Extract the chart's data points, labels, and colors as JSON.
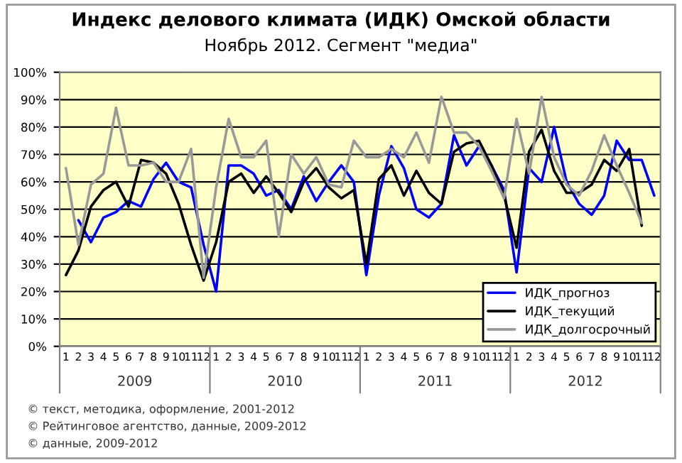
{
  "chart_data": {
    "type": "line",
    "title": "Индекс делового климата (ИДК) Омской области",
    "subtitle": "Ноябрь 2012. Сегмент \"медиа\"",
    "categories": [
      "1",
      "2",
      "3",
      "4",
      "5",
      "6",
      "7",
      "8",
      "9",
      "10",
      "11",
      "12",
      "1",
      "2",
      "3",
      "4",
      "5",
      "6",
      "7",
      "8",
      "9",
      "10",
      "11",
      "12",
      "1",
      "2",
      "3",
      "4",
      "5",
      "6",
      "7",
      "8",
      "9",
      "10",
      "11",
      "12",
      "1",
      "2",
      "3",
      "4",
      "5",
      "6",
      "7",
      "8",
      "9",
      "10",
      "11",
      "12"
    ],
    "series": [
      {
        "name": "ИДК_прогноз",
        "color": "#0000ff",
        "values": [
          null,
          46,
          38,
          47,
          49,
          53,
          51,
          61,
          67,
          60,
          58,
          37,
          20,
          66,
          66,
          63,
          55,
          57,
          50,
          62,
          53,
          60,
          66,
          60,
          26,
          55,
          73,
          65,
          50,
          47,
          52,
          77,
          66,
          73,
          66,
          57,
          27,
          65,
          60,
          80,
          60,
          52,
          48,
          55,
          75,
          68,
          68,
          55
        ]
      },
      {
        "name": "ИДК_текущий",
        "color": "#000000",
        "values": [
          26,
          35,
          51,
          57,
          60,
          51,
          68,
          67,
          63,
          52,
          37,
          24,
          38,
          60,
          63,
          56,
          62,
          56,
          49,
          60,
          65,
          58,
          54,
          57,
          30,
          61,
          66,
          55,
          64,
          56,
          52,
          71,
          74,
          75,
          66,
          55,
          36,
          71,
          79,
          64,
          56,
          56,
          59,
          68,
          64,
          72,
          44,
          null
        ]
      },
      {
        "name": "ИДК_долгосрочный",
        "color": "#999999",
        "values": [
          65,
          37,
          59,
          63,
          87,
          66,
          66,
          67,
          60,
          60,
          72,
          25,
          58,
          83,
          69,
          69,
          75,
          40,
          70,
          63,
          69,
          59,
          58,
          75,
          69,
          69,
          72,
          69,
          78,
          67,
          91,
          78,
          78,
          73,
          64,
          54,
          83,
          63,
          91,
          69,
          59,
          55,
          64,
          77,
          66,
          56,
          45,
          null
        ]
      }
    ],
    "ylim": [
      0,
      100
    ],
    "yticks": [
      {
        "value": 0,
        "label": "0%"
      },
      {
        "value": 10,
        "label": "10%"
      },
      {
        "value": 20,
        "label": "20%"
      },
      {
        "value": 30,
        "label": "30%"
      },
      {
        "value": 40,
        "label": "40%"
      },
      {
        "value": 50,
        "label": "50%"
      },
      {
        "value": 60,
        "label": "60%"
      },
      {
        "value": 70,
        "label": "70%"
      },
      {
        "value": 80,
        "label": "80%"
      },
      {
        "value": 90,
        "label": "90%"
      },
      {
        "value": 100,
        "label": "100%"
      }
    ],
    "grid": "y",
    "legend": "bottom right",
    "marker": "none",
    "line_style": "solid",
    "annotations": [
      "2009",
      "2010",
      "2011",
      "2012",
      "© текст, методика, оформление, 2001-2012",
      "© Рейтинговое агентство, данные, 2009-2012",
      "© данные, 2009-2012"
    ]
  }
}
